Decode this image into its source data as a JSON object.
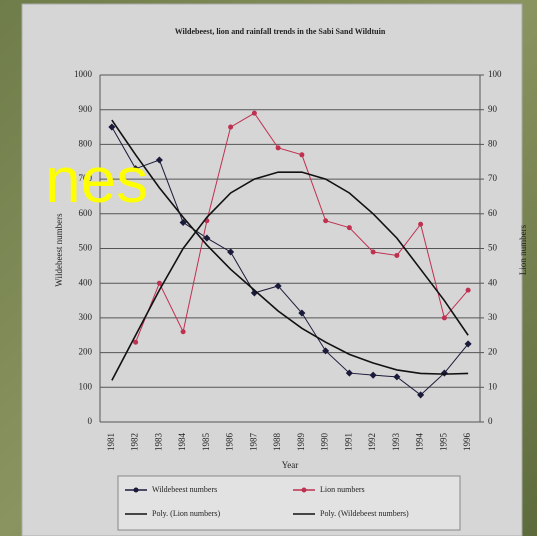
{
  "overlay_text": "nes",
  "chart_data": {
    "type": "line",
    "title": "Wildebeest, lion and rainfall trends in the Sabi Sand Wildtuin",
    "x_label": "Year",
    "y_label": "Wildebeest numbers",
    "y2_label": "Lion numbers",
    "categories": [
      "1981",
      "1982",
      "1983",
      "1984",
      "1985",
      "1986",
      "1987",
      "1988",
      "1989",
      "1990",
      "1991",
      "1992",
      "1993",
      "1994",
      "1995",
      "1996"
    ],
    "ylim": [
      0,
      1000
    ],
    "yticks": [
      0,
      100,
      200,
      300,
      400,
      500,
      600,
      700,
      800,
      900,
      1000
    ],
    "y2lim": [
      0,
      100
    ],
    "y2ticks": [
      0,
      10,
      20,
      30,
      40,
      50,
      60,
      70,
      80,
      90,
      100
    ],
    "grid": true,
    "legend": "bottom",
    "series": [
      {
        "name": "Wildebeest numbers",
        "color": "#1a1a3a",
        "marker": true,
        "values": [
          850,
          730,
          755,
          575,
          530,
          490,
          372,
          392,
          314,
          205,
          141,
          135,
          130,
          78,
          141,
          225
        ]
      },
      {
        "name": "Lion numbers",
        "color": "#c03050",
        "axis": "y2",
        "marker": true,
        "values": [
          null,
          23,
          40,
          26,
          58,
          85,
          89,
          79,
          77,
          58,
          56,
          49,
          48,
          57,
          30,
          38
        ]
      },
      {
        "name": "Poly. (Lion numbers)",
        "color": "#111111",
        "axis": "y2",
        "marker": false,
        "values": [
          12,
          25,
          38,
          50,
          59,
          66,
          70,
          72,
          72,
          70,
          66,
          60,
          53,
          44,
          35,
          25
        ]
      },
      {
        "name": "Poly. (Wildebeest numbers)",
        "color": "#111111",
        "marker": false,
        "values": [
          870,
          770,
          675,
          590,
          510,
          440,
          380,
          320,
          270,
          230,
          195,
          170,
          150,
          140,
          138,
          140
        ]
      }
    ]
  }
}
